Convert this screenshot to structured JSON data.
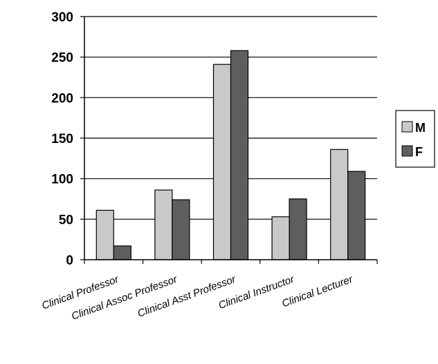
{
  "chart_data": {
    "type": "bar",
    "categories": [
      "Clinical Professor",
      "Clinical Assoc Professor",
      "Clinical Asst Professor",
      "Clinical Instructor",
      "Clinical Lecturer"
    ],
    "series": [
      {
        "name": "M",
        "values": [
          61,
          86,
          241,
          53,
          136
        ],
        "color": "#c9c9c9"
      },
      {
        "name": "F",
        "values": [
          17,
          74,
          258,
          75,
          109
        ],
        "color": "#5e5e5e"
      }
    ],
    "title": "",
    "xlabel": "",
    "ylabel": "",
    "ylim": [
      0,
      300
    ],
    "yticks": [
      "0",
      "50",
      "100",
      "150",
      "200",
      "250",
      "300"
    ],
    "grid": true,
    "legend_position": "right"
  }
}
